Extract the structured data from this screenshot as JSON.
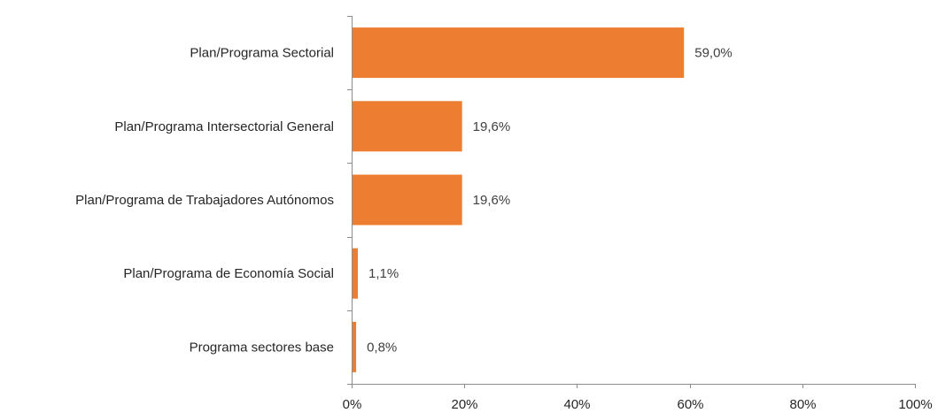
{
  "chart_data": {
    "type": "bar",
    "orientation": "horizontal",
    "categories": [
      "Plan/Programa  Sectorial",
      "Plan/Programa Intersectorial General",
      "Plan/Programa de Trabajadores Autónomos",
      "Plan/Programa de Economía Social",
      "Programa sectores base"
    ],
    "values": [
      59.0,
      19.6,
      19.6,
      1.1,
      0.8
    ],
    "data_labels": [
      "59,0%",
      "19,6%",
      "19,6%",
      "1,1%",
      "0,8%"
    ],
    "xlim": [
      0,
      100
    ],
    "xticks": [
      "0%",
      "20%",
      "40%",
      "60%",
      "80%",
      "100%"
    ],
    "grid": false,
    "legend": "none",
    "colors": {
      "bar": "#ED7D31"
    }
  }
}
